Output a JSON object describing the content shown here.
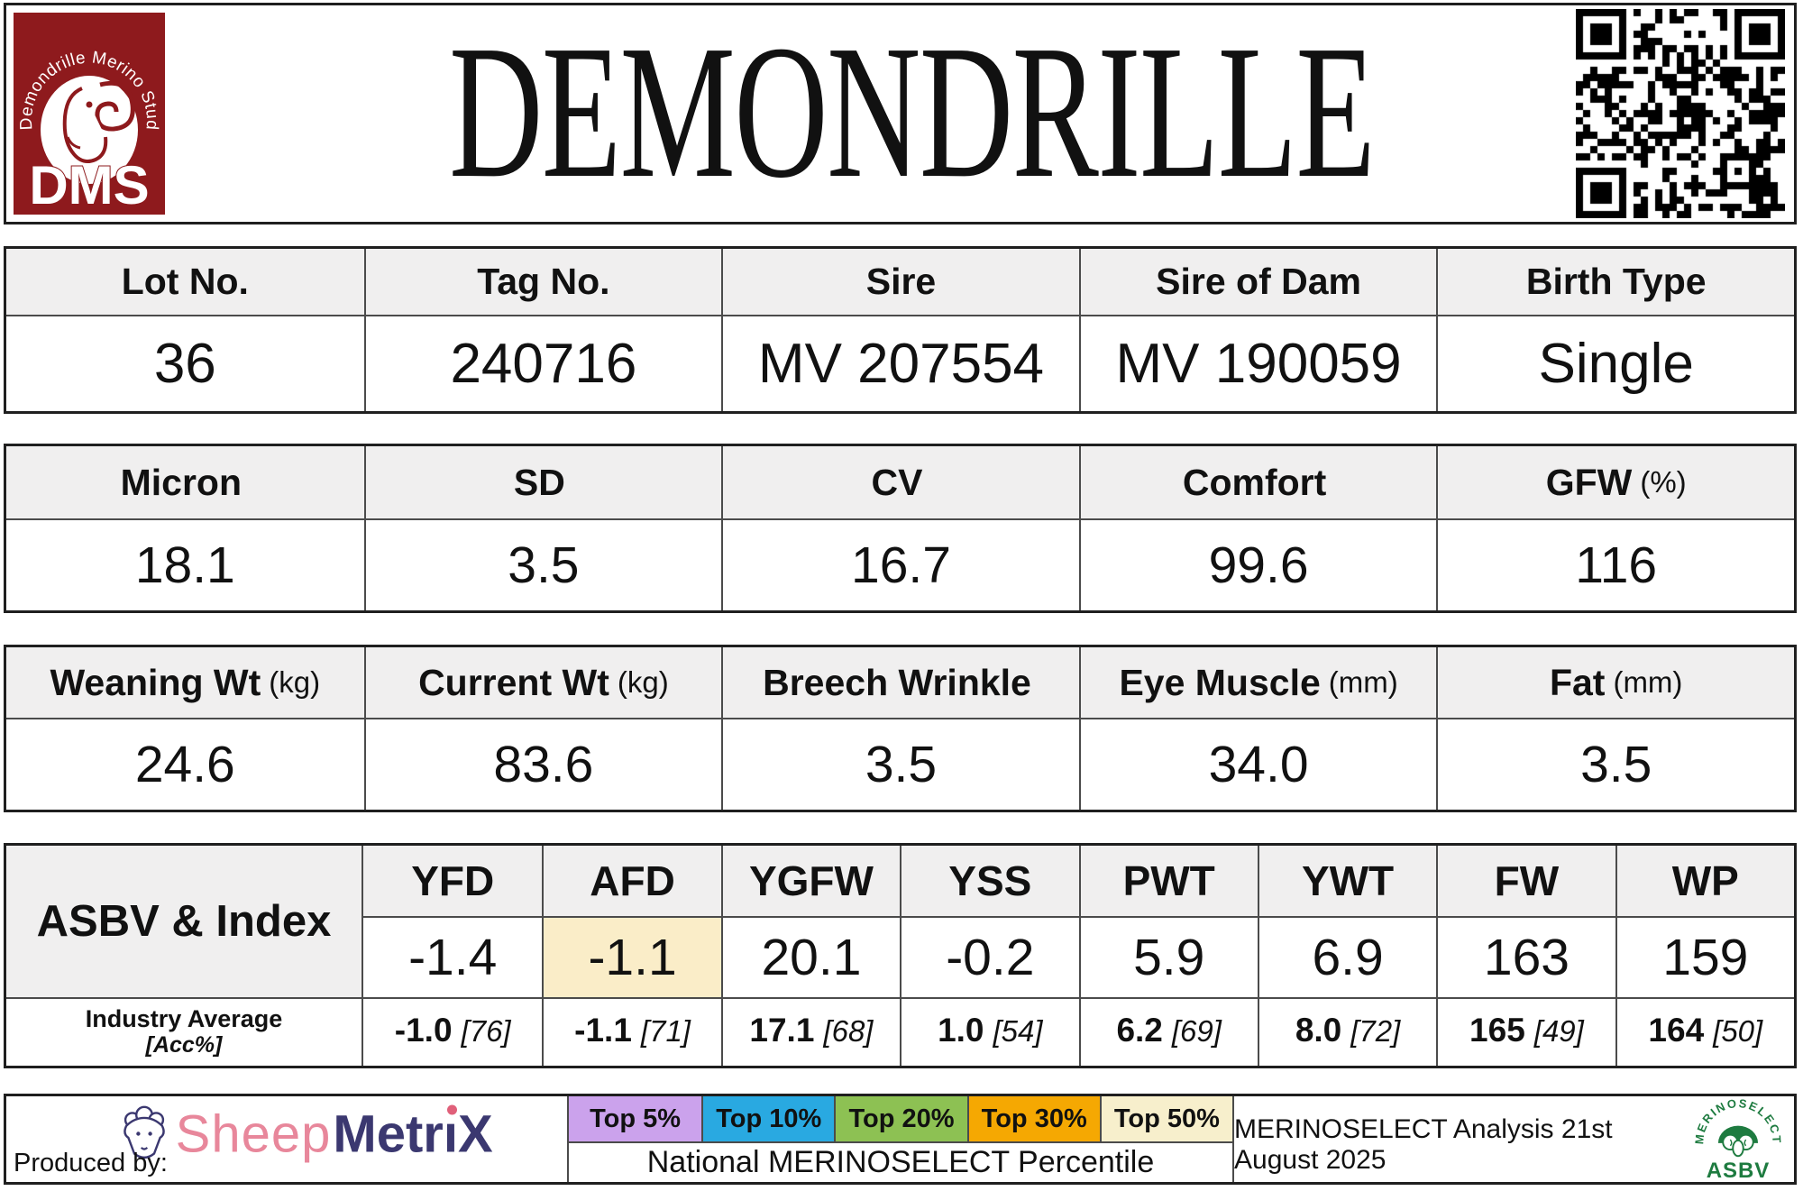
{
  "header": {
    "title": "DEMONDRILLE",
    "logo": {
      "stud_name": "Demondrille Merino Stud",
      "initials": "DMS",
      "bg_color": "#8E1A1D"
    }
  },
  "identity_table": {
    "headers": [
      "Lot No.",
      "Tag No.",
      "Sire",
      "Sire of Dam",
      "Birth Type"
    ],
    "values": [
      "36",
      "240716",
      "MV 207554",
      "MV 190059",
      "Single"
    ]
  },
  "wool_table": {
    "headers": [
      {
        "label": "Micron",
        "unit": ""
      },
      {
        "label": "SD",
        "unit": ""
      },
      {
        "label": "CV",
        "unit": ""
      },
      {
        "label": "Comfort",
        "unit": ""
      },
      {
        "label": "GFW",
        "unit": "(%)"
      }
    ],
    "values": [
      "18.1",
      "3.5",
      "16.7",
      "99.6",
      "116"
    ]
  },
  "body_table": {
    "headers": [
      {
        "label": "Weaning Wt",
        "unit": "(kg)"
      },
      {
        "label": "Current Wt",
        "unit": "(kg)"
      },
      {
        "label": "Breech Wrinkle",
        "unit": ""
      },
      {
        "label": "Eye Muscle",
        "unit": "(mm)"
      },
      {
        "label": "Fat",
        "unit": "(mm)"
      }
    ],
    "values": [
      "24.6",
      "83.6",
      "3.5",
      "34.0",
      "3.5"
    ]
  },
  "asbv_table": {
    "row_label": "ASBV & Index",
    "industry_label": "Industry Average",
    "acc_label": "[Acc%]",
    "highlight_color": "#FAEDC8",
    "columns": [
      {
        "trait": "YFD",
        "value": "-1.4",
        "industry": "-1.0",
        "acc": "[76]"
      },
      {
        "trait": "AFD",
        "value": "-1.1",
        "industry": "-1.1",
        "acc": "[71]"
      },
      {
        "trait": "YGFW",
        "value": "20.1",
        "industry": "17.1",
        "acc": "[68]"
      },
      {
        "trait": "YSS",
        "value": "-0.2",
        "industry": "1.0",
        "acc": "[54]"
      },
      {
        "trait": "PWT",
        "value": "5.9",
        "industry": "6.2",
        "acc": "[69]"
      },
      {
        "trait": "YWT",
        "value": "6.9",
        "industry": "8.0",
        "acc": "[72]"
      },
      {
        "trait": "FW",
        "value": "163",
        "industry": "165",
        "acc": "[49]"
      },
      {
        "trait": "WP",
        "value": "159",
        "industry": "164",
        "acc": "[50]"
      }
    ]
  },
  "footer": {
    "produced_by": "Produced by:",
    "sheepmetrix": {
      "word1": "Sheep",
      "word2a": "Metr",
      "word2i": "ı",
      "word2b": "X"
    },
    "legend": [
      {
        "label": "Top 5%",
        "color": "#CBA2EC"
      },
      {
        "label": "Top 10%",
        "color": "#29A9E1"
      },
      {
        "label": "Top 20%",
        "color": "#8DC153"
      },
      {
        "label": "Top 30%",
        "color": "#F5A802"
      },
      {
        "label": "Top 50%",
        "color": "#F7EFCC"
      }
    ],
    "legend_caption": "National MERINOSELECT Percentile",
    "analysis_note": "MERINOSELECT Analysis 21st August 2025",
    "merinoselect_logo": {
      "arc_text": "MERINOSELECT",
      "sub_text": "ASBV",
      "color": "#1E7B40"
    }
  }
}
